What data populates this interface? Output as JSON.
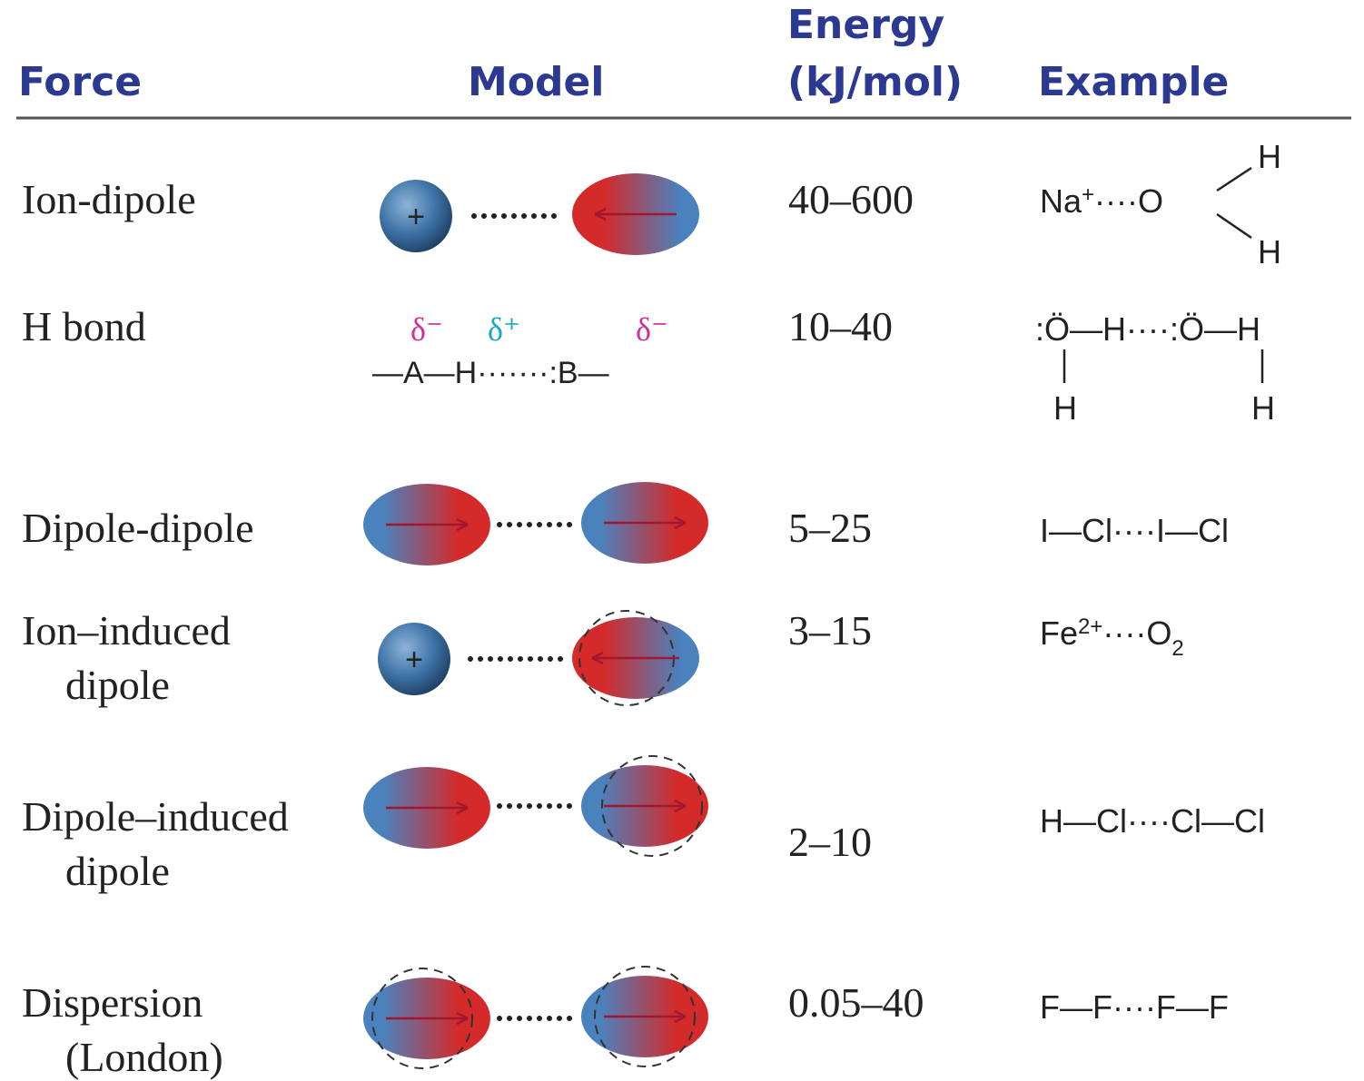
{
  "header": {
    "force": "Force",
    "model": "Model",
    "energy": [
      "Energy",
      "(kJ/mol)"
    ],
    "example": "Example"
  },
  "rows": [
    {
      "force": [
        "Ion-dipole"
      ],
      "model": {
        "ion": "+"
      },
      "energy": "40–600",
      "example": [
        "Na",
        "+",
        "····O",
        "H",
        "H"
      ]
    },
    {
      "force": [
        "H bond"
      ],
      "model": {
        "charges": [
          "δ⁻",
          "δ⁺",
          "δ⁻"
        ],
        "bond": "—A—H·······:B—"
      },
      "energy": "10–40",
      "example": [
        ":Ö—H····:Ö—H",
        "H",
        "H"
      ]
    },
    {
      "force": [
        "Dipole-dipole"
      ],
      "energy": "5–25",
      "example": [
        "I—Cl····I—Cl"
      ]
    },
    {
      "force": [
        "Ion–induced",
        "dipole"
      ],
      "model": {
        "ion": "+"
      },
      "energy": "3–15",
      "example": [
        "Fe",
        "2+",
        "····O",
        "2"
      ]
    },
    {
      "force": [
        "Dipole–induced",
        "dipole"
      ],
      "energy": "2–10",
      "example": [
        "H—Cl····Cl—Cl"
      ]
    },
    {
      "force": [
        "Dispersion",
        "(London)"
      ],
      "energy": "0.05–40",
      "example": [
        "F—F····F—F"
      ]
    }
  ]
}
